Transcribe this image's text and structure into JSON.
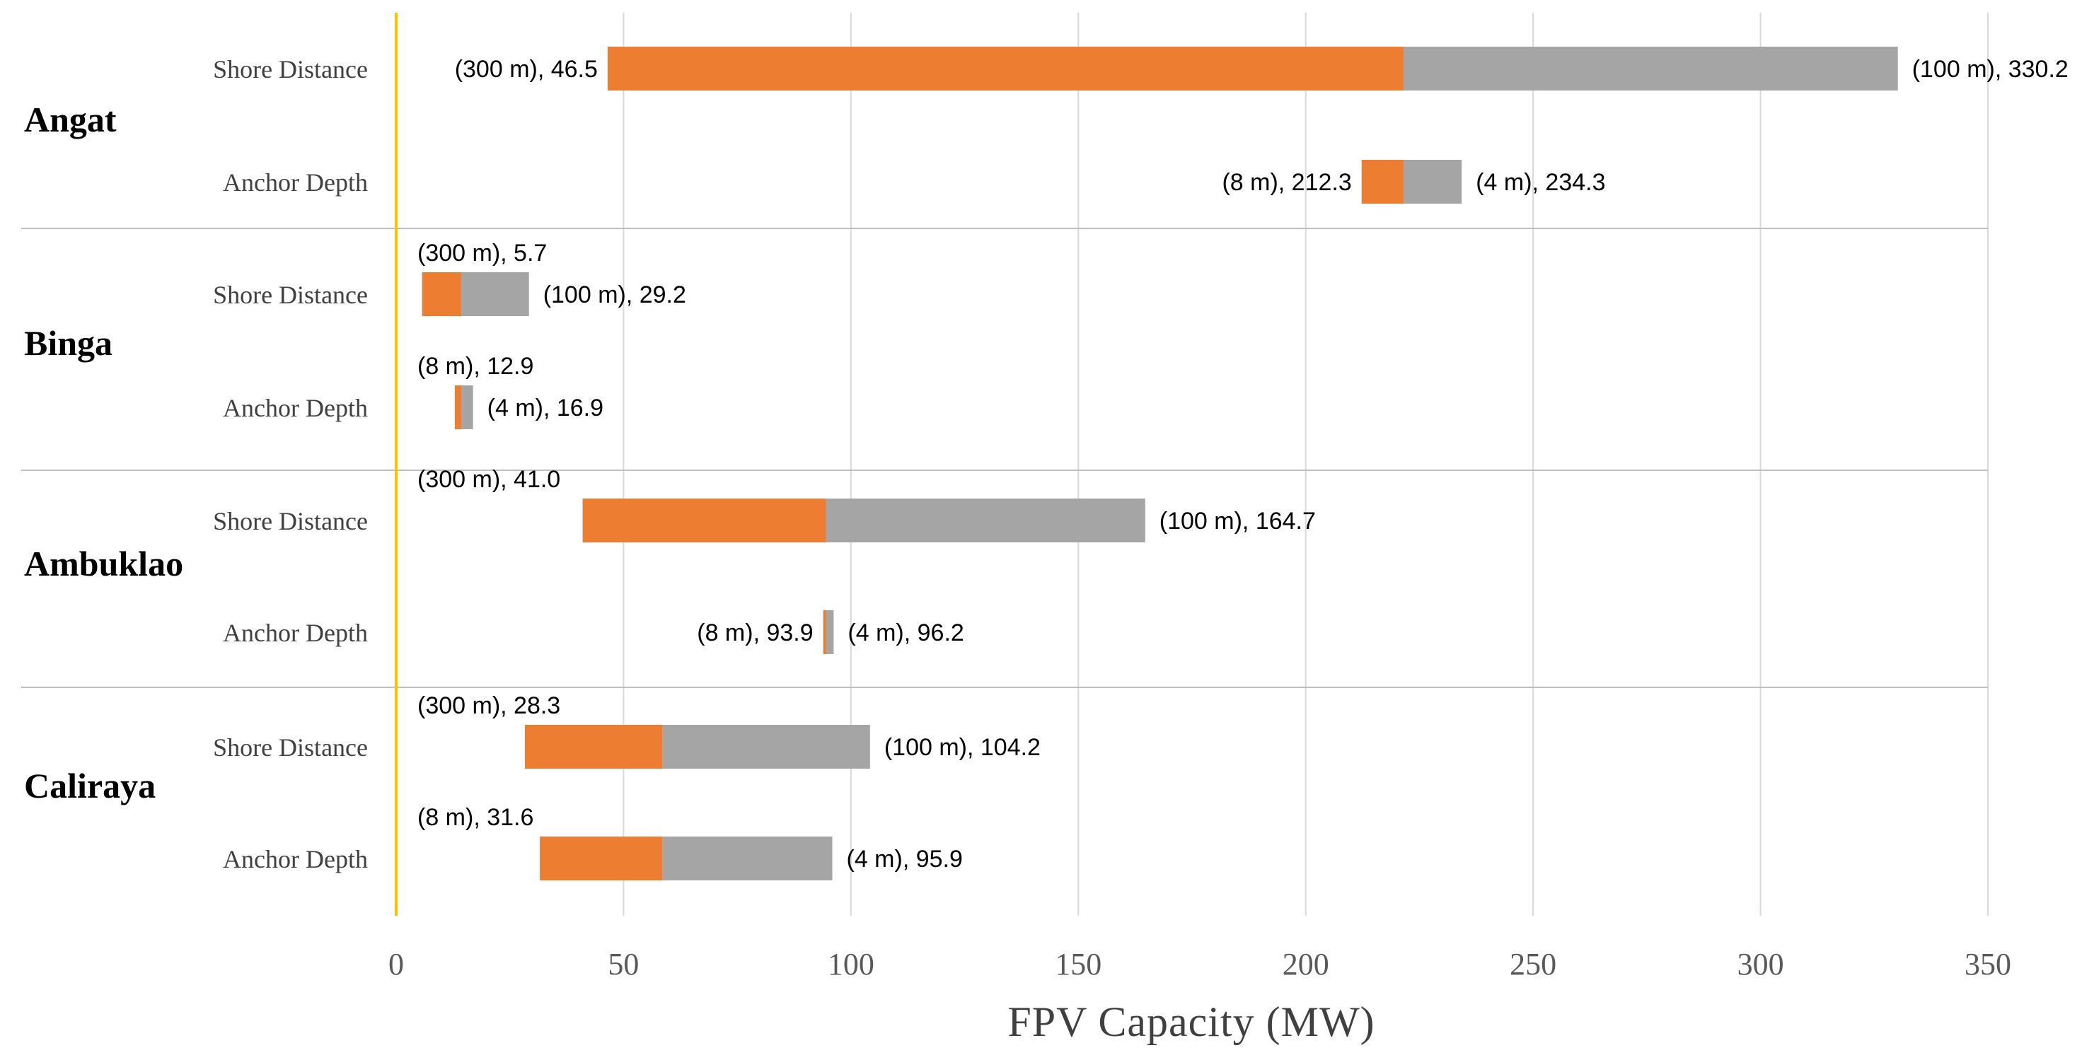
{
  "chart_data": {
    "type": "bar",
    "orientation": "horizontal",
    "subtype": "floating-range",
    "xlabel": "FPV Capacity (MW)",
    "xlim": [
      0,
      350
    ],
    "xticks": [
      0,
      50,
      100,
      150,
      200,
      250,
      300,
      350
    ],
    "grid": true,
    "colors": {
      "low_segment": "#ED7D31",
      "high_segment": "#A5A5A5",
      "zero_line": "#FFC000",
      "grid": "#D9D9D9",
      "separator": "#BFBFBF"
    },
    "groups": [
      {
        "name": "Angat",
        "rows": [
          {
            "category": "Shore Distance",
            "start": 46.5,
            "mid": 221.5,
            "end": 330.2,
            "start_label": "(300 m), 46.5",
            "end_label": "(100 m), 330.2"
          },
          {
            "category": "Anchor Depth",
            "start": 212.3,
            "mid": 221.5,
            "end": 234.3,
            "start_label": "(8 m), 212.3",
            "end_label": "(4 m), 234.3"
          }
        ]
      },
      {
        "name": "Binga",
        "rows": [
          {
            "category": "Shore Distance",
            "start": 5.7,
            "mid": 14.3,
            "end": 29.2,
            "start_label": "(300 m), 5.7",
            "end_label": "(100 m), 29.2"
          },
          {
            "category": "Anchor Depth",
            "start": 12.9,
            "mid": 14.3,
            "end": 16.9,
            "start_label": "(8 m), 12.9",
            "end_label": "(4 m), 16.9"
          }
        ]
      },
      {
        "name": "Ambuklao",
        "rows": [
          {
            "category": "Shore Distance",
            "start": 41.0,
            "mid": 94.5,
            "end": 164.7,
            "start_label": "(300 m), 41.0",
            "end_label": "(100 m), 164.7"
          },
          {
            "category": "Anchor Depth",
            "start": 93.9,
            "mid": 94.5,
            "end": 96.2,
            "start_label": "(8 m), 93.9",
            "end_label": "(4 m), 96.2"
          }
        ]
      },
      {
        "name": "Caliraya",
        "rows": [
          {
            "category": "Shore Distance",
            "start": 28.3,
            "mid": 58.6,
            "end": 104.2,
            "start_label": "(300 m), 28.3",
            "end_label": "(100 m), 104.2"
          },
          {
            "category": "Anchor Depth",
            "start": 31.6,
            "mid": 58.6,
            "end": 95.9,
            "start_label": "(8 m), 31.6",
            "end_label": "(4 m), 95.9"
          }
        ]
      }
    ]
  }
}
